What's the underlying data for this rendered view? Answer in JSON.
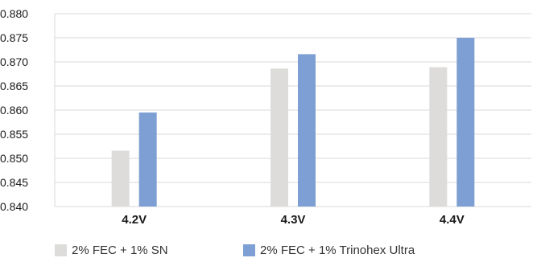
{
  "chart_data": {
    "type": "bar",
    "categories": [
      "4.2V",
      "4.3V",
      "4.4V"
    ],
    "series": [
      {
        "name": "2% FEC + 1% SN",
        "values": [
          0.8516,
          0.8686,
          0.8689
        ],
        "color": "#dddcda"
      },
      {
        "name": "2% FEC + 1% Trinohex Ultra",
        "values": [
          0.8595,
          0.8716,
          0.875
        ],
        "color": "#7d9fd3"
      }
    ],
    "title": "",
    "xlabel": "",
    "ylabel": "",
    "ylim": [
      0.84,
      0.88
    ],
    "yticks": [
      "0.840",
      "0.845",
      "0.850",
      "0.855",
      "0.860",
      "0.865",
      "0.870",
      "0.875",
      "0.880"
    ],
    "grid": true,
    "legend_position": "bottom-left",
    "axis_color": "#d9d9d9"
  }
}
